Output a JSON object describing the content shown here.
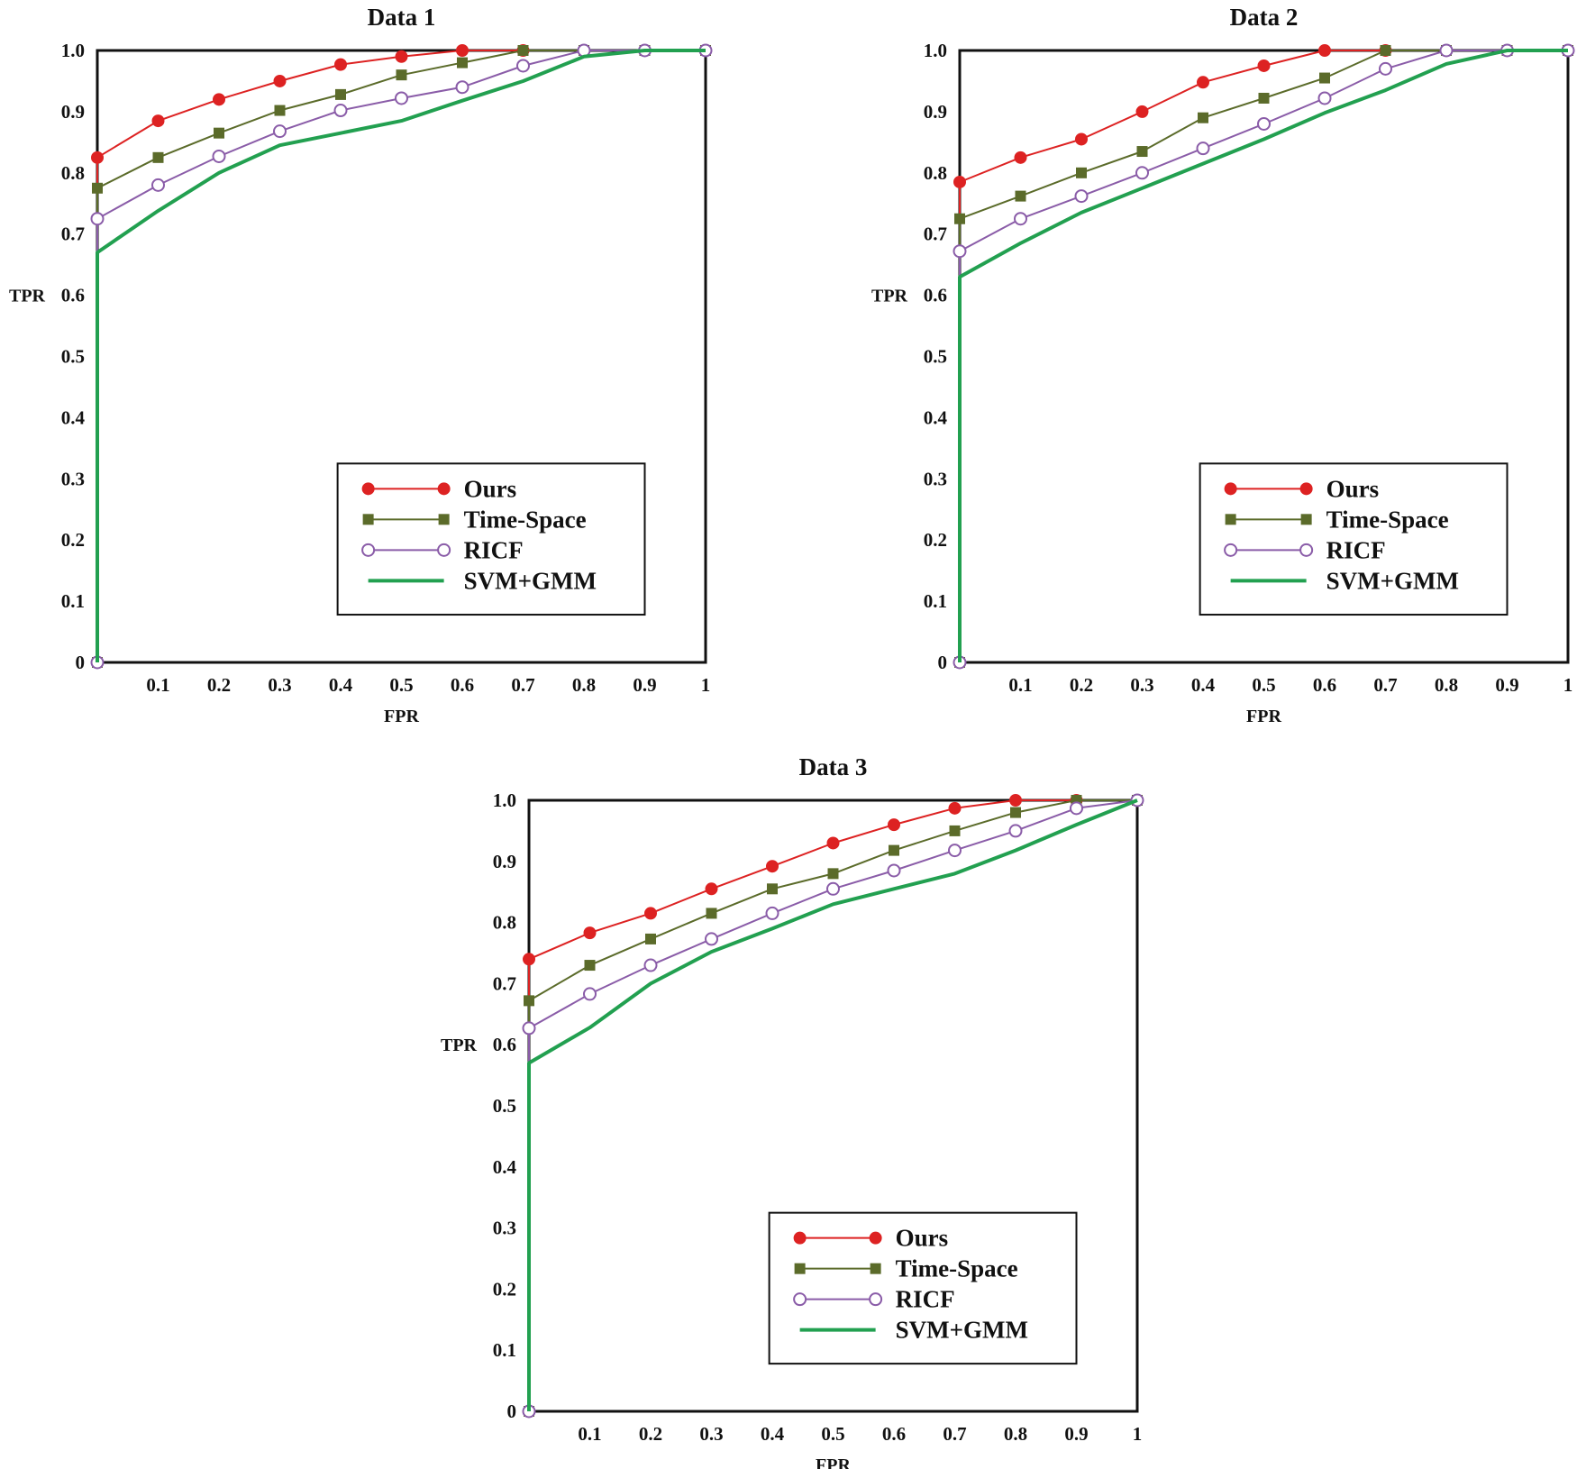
{
  "colors": {
    "Ours": "#dd2222",
    "Time-Space": "#5b6b2a",
    "RICF": "#8a5ca8",
    "SVM+GMM": "#22a050",
    "axis": "#111111"
  },
  "chart_data": [
    {
      "type": "line",
      "title": "Data 1",
      "xlabel": "FPR",
      "ylabel": "TPR",
      "xlim": [
        0,
        1
      ],
      "ylim": [
        0,
        1
      ],
      "x_ticks": [
        "0.1",
        "0.2",
        "0.3",
        "0.4",
        "0.5",
        "0.6",
        "0.7",
        "0.8",
        "0.9",
        "1"
      ],
      "y_ticks": [
        "0",
        "0.1",
        "0.2",
        "0.3",
        "0.4",
        "0.5",
        "0.6",
        "0.7",
        "0.8",
        "0.9",
        "1.0"
      ],
      "legend": "bottom-right",
      "series": [
        {
          "name": "Ours",
          "marker": "filled-circle",
          "x": [
            0,
            0,
            0.1,
            0.2,
            0.3,
            0.4,
            0.5,
            0.6,
            0.7,
            0.8,
            0.9,
            1.0
          ],
          "y": [
            0,
            0.825,
            0.885,
            0.92,
            0.95,
            0.977,
            0.99,
            1.0,
            1.0,
            1.0,
            1.0,
            1.0
          ]
        },
        {
          "name": "Time-Space",
          "marker": "filled-square",
          "x": [
            0,
            0,
            0.1,
            0.2,
            0.3,
            0.4,
            0.5,
            0.6,
            0.7,
            0.8,
            0.9,
            1.0
          ],
          "y": [
            0,
            0.775,
            0.825,
            0.865,
            0.902,
            0.928,
            0.96,
            0.98,
            1.0,
            1.0,
            1.0,
            1.0
          ]
        },
        {
          "name": "RICF",
          "marker": "open-circle",
          "x": [
            0,
            0,
            0.1,
            0.2,
            0.3,
            0.4,
            0.5,
            0.6,
            0.7,
            0.8,
            0.9,
            1.0
          ],
          "y": [
            0,
            0.725,
            0.78,
            0.827,
            0.868,
            0.902,
            0.922,
            0.94,
            0.975,
            1.0,
            1.0,
            1.0
          ]
        },
        {
          "name": "SVM+GMM",
          "marker": "none",
          "x": [
            0,
            0,
            0.1,
            0.2,
            0.3,
            0.4,
            0.5,
            0.6,
            0.7,
            0.8,
            0.9,
            1.0
          ],
          "y": [
            0,
            0.67,
            0.738,
            0.8,
            0.845,
            0.865,
            0.885,
            0.918,
            0.95,
            0.99,
            1.0,
            1.0
          ]
        }
      ]
    },
    {
      "type": "line",
      "title": "Data 2",
      "xlabel": "FPR",
      "ylabel": "TPR",
      "xlim": [
        0,
        1
      ],
      "ylim": [
        0,
        1
      ],
      "x_ticks": [
        "0.1",
        "0.2",
        "0.3",
        "0.4",
        "0.5",
        "0.6",
        "0.7",
        "0.8",
        "0.9",
        "1"
      ],
      "y_ticks": [
        "0",
        "0.1",
        "0.2",
        "0.3",
        "0.4",
        "0.5",
        "0.6",
        "0.7",
        "0.8",
        "0.9",
        "1.0"
      ],
      "legend": "bottom-right",
      "series": [
        {
          "name": "Ours",
          "marker": "filled-circle",
          "x": [
            0,
            0,
            0.1,
            0.2,
            0.3,
            0.4,
            0.5,
            0.6,
            0.7,
            0.8,
            0.9,
            1.0
          ],
          "y": [
            0,
            0.785,
            0.825,
            0.855,
            0.9,
            0.948,
            0.975,
            1.0,
            1.0,
            1.0,
            1.0,
            1.0
          ]
        },
        {
          "name": "Time-Space",
          "marker": "filled-square",
          "x": [
            0,
            0,
            0.1,
            0.2,
            0.3,
            0.4,
            0.5,
            0.6,
            0.7,
            0.8,
            0.9,
            1.0
          ],
          "y": [
            0,
            0.725,
            0.762,
            0.8,
            0.835,
            0.89,
            0.922,
            0.955,
            1.0,
            1.0,
            1.0,
            1.0
          ]
        },
        {
          "name": "RICF",
          "marker": "open-circle",
          "x": [
            0,
            0,
            0.1,
            0.2,
            0.3,
            0.4,
            0.5,
            0.6,
            0.7,
            0.8,
            0.9,
            1.0
          ],
          "y": [
            0,
            0.672,
            0.725,
            0.762,
            0.8,
            0.84,
            0.88,
            0.922,
            0.97,
            1.0,
            1.0,
            1.0
          ]
        },
        {
          "name": "SVM+GMM",
          "marker": "none",
          "x": [
            0,
            0,
            0.1,
            0.2,
            0.3,
            0.4,
            0.5,
            0.6,
            0.7,
            0.8,
            0.9,
            1.0
          ],
          "y": [
            0,
            0.63,
            0.685,
            0.735,
            0.775,
            0.815,
            0.855,
            0.898,
            0.935,
            0.978,
            1.0,
            1.0
          ]
        }
      ]
    },
    {
      "type": "line",
      "title": "Data 3",
      "xlabel": "FPR",
      "ylabel": "TPR",
      "xlim": [
        0,
        1
      ],
      "ylim": [
        0,
        1
      ],
      "x_ticks": [
        "0.1",
        "0.2",
        "0.3",
        "0.4",
        "0.5",
        "0.6",
        "0.7",
        "0.8",
        "0.9",
        "1"
      ],
      "y_ticks": [
        "0",
        "0.1",
        "0.2",
        "0.3",
        "0.4",
        "0.5",
        "0.6",
        "0.7",
        "0.8",
        "0.9",
        "1.0"
      ],
      "legend": "bottom-right",
      "series": [
        {
          "name": "Ours",
          "marker": "filled-circle",
          "x": [
            0,
            0,
            0.1,
            0.2,
            0.3,
            0.4,
            0.5,
            0.6,
            0.7,
            0.8,
            0.9,
            1.0
          ],
          "y": [
            0,
            0.74,
            0.783,
            0.815,
            0.855,
            0.892,
            0.93,
            0.96,
            0.987,
            1.0,
            1.0,
            1.0
          ]
        },
        {
          "name": "Time-Space",
          "marker": "filled-square",
          "x": [
            0,
            0,
            0.1,
            0.2,
            0.3,
            0.4,
            0.5,
            0.6,
            0.7,
            0.8,
            0.9,
            1.0
          ],
          "y": [
            0,
            0.672,
            0.73,
            0.773,
            0.815,
            0.855,
            0.88,
            0.918,
            0.95,
            0.98,
            1.0,
            1.0
          ]
        },
        {
          "name": "RICF",
          "marker": "open-circle",
          "x": [
            0,
            0,
            0.1,
            0.2,
            0.3,
            0.4,
            0.5,
            0.6,
            0.7,
            0.8,
            0.9,
            1.0
          ],
          "y": [
            0,
            0.627,
            0.683,
            0.73,
            0.773,
            0.815,
            0.855,
            0.885,
            0.918,
            0.95,
            0.987,
            1.0
          ]
        },
        {
          "name": "SVM+GMM",
          "marker": "none",
          "x": [
            0,
            0,
            0.1,
            0.2,
            0.3,
            0.4,
            0.5,
            0.6,
            0.7,
            0.8,
            0.9,
            1.0
          ],
          "y": [
            0,
            0.57,
            0.628,
            0.7,
            0.752,
            0.79,
            0.83,
            0.855,
            0.88,
            0.918,
            0.96,
            1.0
          ]
        }
      ]
    }
  ]
}
